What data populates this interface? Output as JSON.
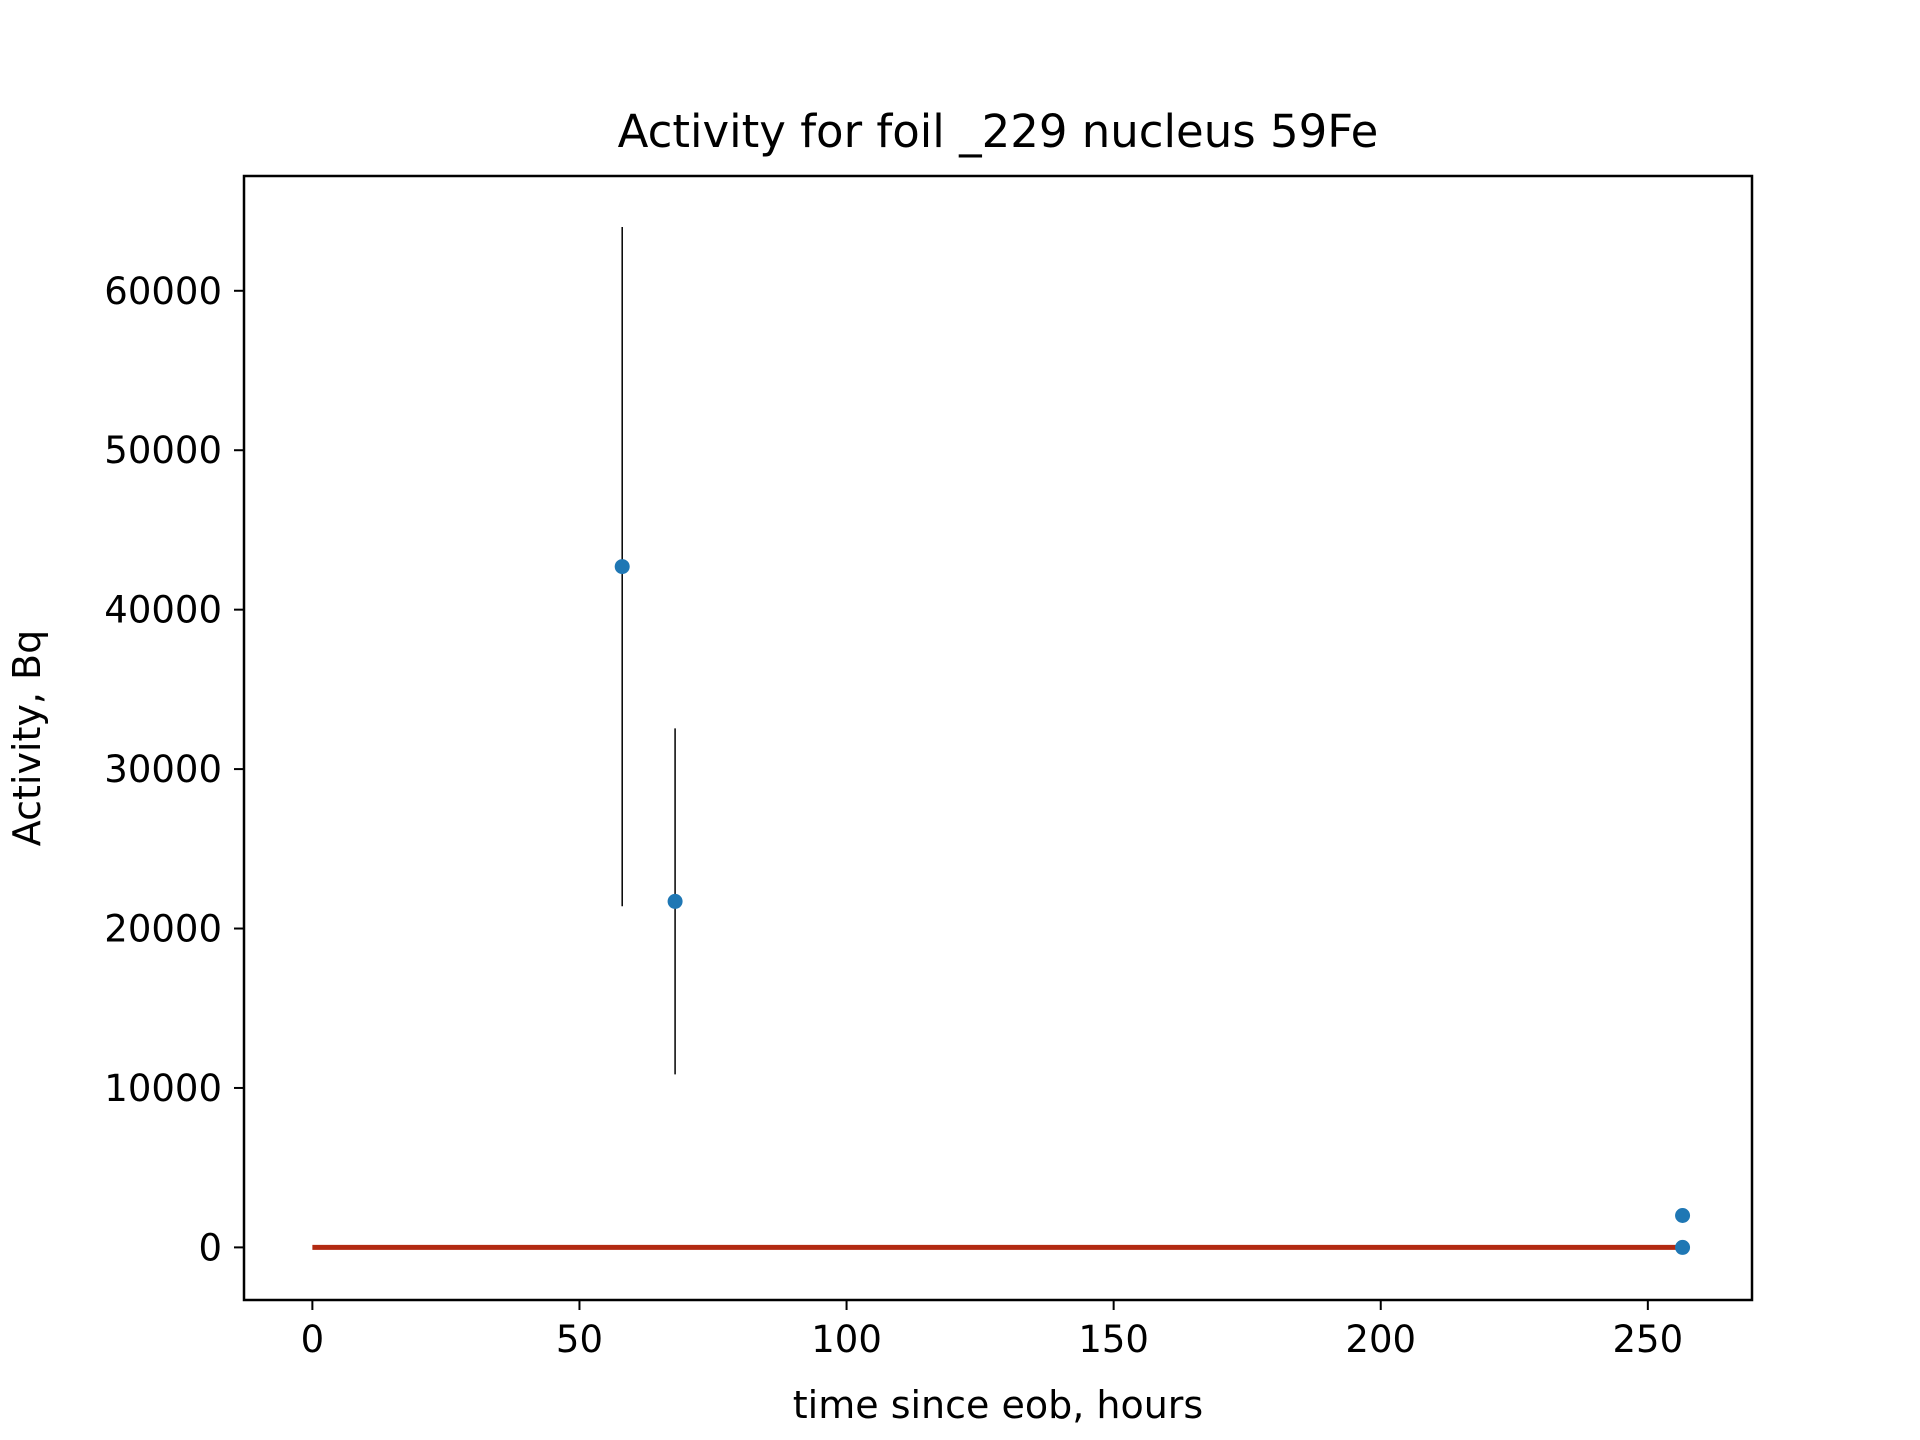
{
  "chart_data": {
    "type": "scatter",
    "title": "Activity for foil _229 nucleus 59Fe",
    "xlabel": "time since eob, hours",
    "ylabel": "Activity, Bq",
    "xlim": [
      -12.8,
      269.5
    ],
    "ylim": [
      -3300,
      67200
    ],
    "xticks": [
      0,
      50,
      100,
      150,
      200,
      250
    ],
    "yticks": [
      0,
      10000,
      20000,
      30000,
      40000,
      50000,
      60000
    ],
    "grid": false,
    "legend": "none",
    "series": [
      {
        "kind": "errorbar",
        "color": "#1f77b4",
        "points": [
          {
            "x": 58.0,
            "y": 42700,
            "yerr": 21300
          },
          {
            "x": 67.9,
            "y": 21700,
            "yerr": 10850
          },
          {
            "x": 256.5,
            "y": 2000,
            "yerr": 0
          },
          {
            "x": 256.5,
            "y": 0,
            "yerr": 0
          }
        ]
      },
      {
        "kind": "line",
        "color": "#b22a12",
        "x": [
          0,
          256.5
        ],
        "y": [
          0,
          0
        ]
      }
    ]
  }
}
